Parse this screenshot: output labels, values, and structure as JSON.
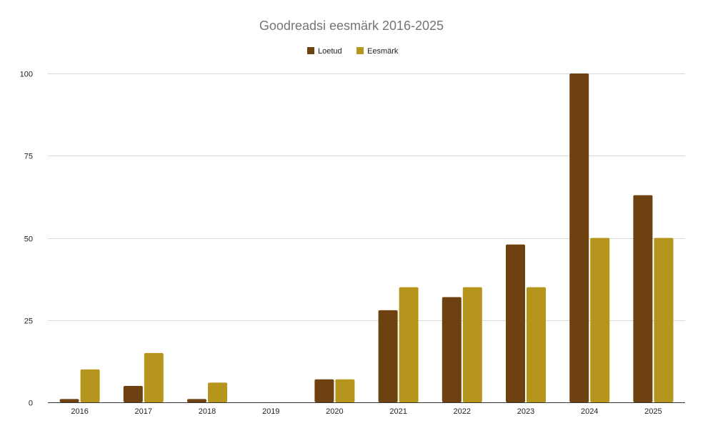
{
  "chart_data": {
    "type": "bar",
    "title": "Goodreadsi eesmärk 2016-2025",
    "xlabel": "",
    "ylabel": "",
    "categories": [
      "2016",
      "2017",
      "2018",
      "2019",
      "2020",
      "2021",
      "2022",
      "2023",
      "2024",
      "2025"
    ],
    "series": [
      {
        "name": "Loetud",
        "color": "#6e4210",
        "values": [
          1,
          5,
          1,
          0,
          7,
          28,
          32,
          48,
          100,
          63
        ]
      },
      {
        "name": "Eesmärk",
        "color": "#b5951c",
        "values": [
          10,
          15,
          6,
          0,
          7,
          35,
          35,
          35,
          50,
          50
        ]
      }
    ],
    "ylim": [
      0,
      100
    ],
    "yticks": [
      0,
      25,
      50,
      75,
      100
    ],
    "grid": true,
    "legend_position": "top"
  }
}
